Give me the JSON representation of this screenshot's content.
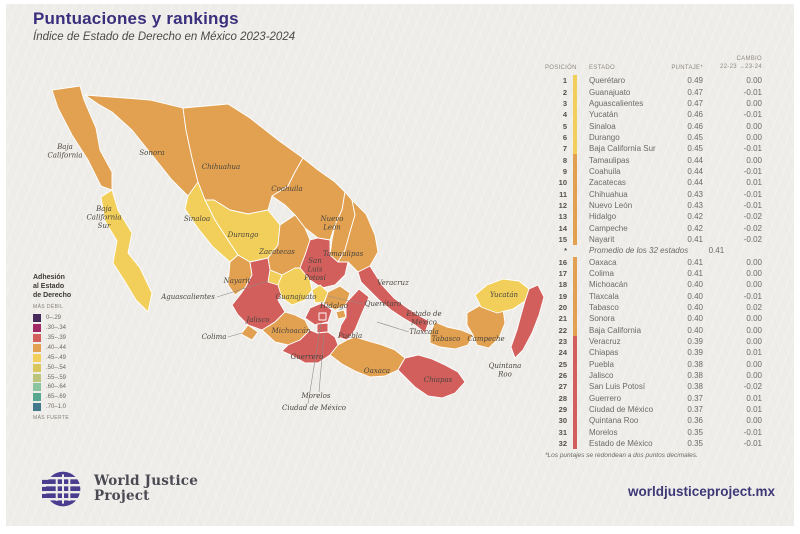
{
  "header": {
    "title": "Puntuaciones y rankings",
    "subtitle": "Índice de Estado de Derecho en México 2023-2024"
  },
  "colors": {
    "paper": "#efede9",
    "title_purple": "#3a2f7d",
    "bands": {
      "yellow": "#F2CF5A",
      "orange": "#E2A150",
      "red": "#D35F5C"
    }
  },
  "legend": {
    "title1": "Adhesión",
    "title2": "al Estado",
    "title3": "de Derecho",
    "weak": "MÁS DÉBIL",
    "strong": "MÁS FUERTE",
    "bins": [
      {
        "range": "0–.29",
        "color": "#472A5B"
      },
      {
        "range": ".30–.34",
        "color": "#A12A66"
      },
      {
        "range": ".35–.39",
        "color": "#D35F5C"
      },
      {
        "range": ".40–.44",
        "color": "#E2A150"
      },
      {
        "range": ".45–.49",
        "color": "#F2CF5A"
      },
      {
        "range": ".50–.54",
        "color": "#D9C75E"
      },
      {
        "range": ".55–.59",
        "color": "#BAC57B"
      },
      {
        "range": ".60–.64",
        "color": "#8CC49F"
      },
      {
        "range": ".65–.69",
        "color": "#56A690"
      },
      {
        "range": ".70–1.0",
        "color": "#44788C"
      }
    ]
  },
  "table": {
    "headers": {
      "position": "POSICIÓN",
      "estado": "ESTADO",
      "puntaje": "PUNTAJE*",
      "cambio1": "CAMBIO",
      "cambio2": "22-23 →23-24"
    },
    "rows": [
      {
        "pos": "1",
        "estado": "Querétaro",
        "puntaje": "0.49",
        "cambio": "0.00",
        "band": "yellow"
      },
      {
        "pos": "2",
        "estado": "Guanajuato",
        "puntaje": "0.47",
        "cambio": "-0.01",
        "band": "yellow"
      },
      {
        "pos": "3",
        "estado": "Aguascalientes",
        "puntaje": "0.47",
        "cambio": "0.00",
        "band": "yellow"
      },
      {
        "pos": "4",
        "estado": "Yucatán",
        "puntaje": "0.46",
        "cambio": "-0.01",
        "band": "yellow"
      },
      {
        "pos": "5",
        "estado": "Sinaloa",
        "puntaje": "0.46",
        "cambio": "0.00",
        "band": "yellow"
      },
      {
        "pos": "6",
        "estado": "Durango",
        "puntaje": "0.45",
        "cambio": "0.00",
        "band": "yellow"
      },
      {
        "pos": "7",
        "estado": "Baja California Sur",
        "puntaje": "0.45",
        "cambio": "-0.01",
        "band": "yellow"
      },
      {
        "pos": "8",
        "estado": "Tamaulipas",
        "puntaje": "0.44",
        "cambio": "0.00",
        "band": "orange"
      },
      {
        "pos": "9",
        "estado": "Coahuila",
        "puntaje": "0.44",
        "cambio": "-0.01",
        "band": "orange"
      },
      {
        "pos": "10",
        "estado": "Zacatecas",
        "puntaje": "0.44",
        "cambio": "0.01",
        "band": "orange"
      },
      {
        "pos": "11",
        "estado": "Chihuahua",
        "puntaje": "0.43",
        "cambio": "-0.01",
        "band": "orange"
      },
      {
        "pos": "12",
        "estado": "Nuevo León",
        "puntaje": "0.43",
        "cambio": "-0.01",
        "band": "orange"
      },
      {
        "pos": "13",
        "estado": "Hidalgo",
        "puntaje": "0.42",
        "cambio": "-0.02",
        "band": "orange"
      },
      {
        "pos": "14",
        "estado": "Campeche",
        "puntaje": "0.42",
        "cambio": "-0.02",
        "band": "orange"
      },
      {
        "pos": "15",
        "estado": "Nayarit",
        "puntaje": "0.41",
        "cambio": "-0.02",
        "band": "orange"
      },
      {
        "pos": "*",
        "estado": "Promedio de los 32 estados",
        "puntaje": "0.41",
        "cambio": "",
        "band": null,
        "average": true
      },
      {
        "pos": "16",
        "estado": "Oaxaca",
        "puntaje": "0.41",
        "cambio": "0.00",
        "band": "orange"
      },
      {
        "pos": "17",
        "estado": "Colima",
        "puntaje": "0.41",
        "cambio": "0.00",
        "band": "orange"
      },
      {
        "pos": "18",
        "estado": "Michoacán",
        "puntaje": "0.40",
        "cambio": "0.00",
        "band": "orange"
      },
      {
        "pos": "19",
        "estado": "Tlaxcala",
        "puntaje": "0.40",
        "cambio": "-0.01",
        "band": "orange"
      },
      {
        "pos": "20",
        "estado": "Tabasco",
        "puntaje": "0.40",
        "cambio": "0.02",
        "band": "orange"
      },
      {
        "pos": "21",
        "estado": "Sonora",
        "puntaje": "0.40",
        "cambio": "0.00",
        "band": "orange"
      },
      {
        "pos": "22",
        "estado": "Baja California",
        "puntaje": "0.40",
        "cambio": "0.00",
        "band": "orange"
      },
      {
        "pos": "23",
        "estado": "Veracruz",
        "puntaje": "0.39",
        "cambio": "0.00",
        "band": "red"
      },
      {
        "pos": "24",
        "estado": "Chiapas",
        "puntaje": "0.39",
        "cambio": "0.01",
        "band": "red"
      },
      {
        "pos": "25",
        "estado": "Puebla",
        "puntaje": "0.38",
        "cambio": "0.00",
        "band": "red"
      },
      {
        "pos": "26",
        "estado": "Jalisco",
        "puntaje": "0.38",
        "cambio": "0.00",
        "band": "red"
      },
      {
        "pos": "27",
        "estado": "San Luis Potosí",
        "puntaje": "0.38",
        "cambio": "-0.02",
        "band": "red"
      },
      {
        "pos": "28",
        "estado": "Guerrero",
        "puntaje": "0.37",
        "cambio": "0.01",
        "band": "red"
      },
      {
        "pos": "29",
        "estado": "Ciudad de México",
        "puntaje": "0.37",
        "cambio": "0.01",
        "band": "red"
      },
      {
        "pos": "30",
        "estado": "Quintana Roo",
        "puntaje": "0.36",
        "cambio": "0.00",
        "band": "red"
      },
      {
        "pos": "31",
        "estado": "Morelos",
        "puntaje": "0.35",
        "cambio": "-0.01",
        "band": "red"
      },
      {
        "pos": "32",
        "estado": "Estado de México",
        "puntaje": "0.35",
        "cambio": "-0.01",
        "band": "red"
      }
    ],
    "footnote": "*Los puntajes se redondean a dos puntos decimales."
  },
  "map": {
    "states": [
      {
        "id": "baja-california",
        "band": "orange"
      },
      {
        "id": "baja-california-sur",
        "band": "yellow"
      },
      {
        "id": "sonora",
        "band": "orange"
      },
      {
        "id": "chihuahua",
        "band": "orange"
      },
      {
        "id": "coahuila",
        "band": "orange"
      },
      {
        "id": "nuevo-leon",
        "band": "orange"
      },
      {
        "id": "tamaulipas",
        "band": "orange"
      },
      {
        "id": "sinaloa",
        "band": "yellow"
      },
      {
        "id": "durango",
        "band": "yellow"
      },
      {
        "id": "zacatecas",
        "band": "orange"
      },
      {
        "id": "san-luis-potosi",
        "band": "red"
      },
      {
        "id": "nayarit",
        "band": "orange"
      },
      {
        "id": "jalisco",
        "band": "red"
      },
      {
        "id": "aguascalientes",
        "band": "yellow"
      },
      {
        "id": "guanajuato",
        "band": "yellow"
      },
      {
        "id": "queretaro",
        "band": "yellow"
      },
      {
        "id": "hidalgo",
        "band": "orange"
      },
      {
        "id": "veracruz",
        "band": "red"
      },
      {
        "id": "michoacan",
        "band": "orange"
      },
      {
        "id": "colima",
        "band": "orange"
      },
      {
        "id": "estado-de-mexico",
        "band": "red"
      },
      {
        "id": "puebla",
        "band": "red"
      },
      {
        "id": "ciudad-de-mexico",
        "band": "red"
      },
      {
        "id": "tlaxcala",
        "band": "orange"
      },
      {
        "id": "morelos",
        "band": "red"
      },
      {
        "id": "guerrero",
        "band": "red"
      },
      {
        "id": "oaxaca",
        "band": "orange"
      },
      {
        "id": "tabasco",
        "band": "orange"
      },
      {
        "id": "chiapas",
        "band": "red"
      },
      {
        "id": "campeche",
        "band": "orange"
      },
      {
        "id": "yucatan",
        "band": "yellow"
      },
      {
        "id": "quintana-roo",
        "band": "red"
      }
    ],
    "labels": [
      {
        "id": "baja-california",
        "lines": [
          "Baja",
          "California"
        ]
      },
      {
        "id": "baja-california-sur",
        "lines": [
          "Baja",
          "California",
          "Sur"
        ]
      },
      {
        "id": "sonora",
        "lines": [
          "Sonora"
        ]
      },
      {
        "id": "chihuahua",
        "lines": [
          "Chihuahua"
        ]
      },
      {
        "id": "coahuila",
        "lines": [
          "Coahuila"
        ]
      },
      {
        "id": "sinaloa",
        "lines": [
          "Sinaloa"
        ]
      },
      {
        "id": "durango",
        "lines": [
          "Durango"
        ]
      },
      {
        "id": "nuevo-leon",
        "lines": [
          "Nuevo",
          "León"
        ]
      },
      {
        "id": "tamaulipas",
        "lines": [
          "Tamaulipas"
        ]
      },
      {
        "id": "zacatecas",
        "lines": [
          "Zacatecas"
        ]
      },
      {
        "id": "san-luis-potosi",
        "lines": [
          "San",
          "Luis",
          "Potosí"
        ]
      },
      {
        "id": "nayarit",
        "lines": [
          "Nayarit"
        ]
      },
      {
        "id": "aguascalientes",
        "lines": [
          "Aguascalientes"
        ]
      },
      {
        "id": "jalisco",
        "lines": [
          "Jalisco"
        ]
      },
      {
        "id": "guanajuato",
        "lines": [
          "Guanajuato"
        ]
      },
      {
        "id": "queretaro",
        "lines": [
          "Querétaro"
        ]
      },
      {
        "id": "hidalgo",
        "lines": [
          "Hidalgo"
        ]
      },
      {
        "id": "veracruz",
        "lines": [
          "Veracruz"
        ]
      },
      {
        "id": "estado-de-mexico",
        "lines": [
          "Estado de",
          "México"
        ]
      },
      {
        "id": "tlaxcala",
        "lines": [
          "Tlaxcala"
        ]
      },
      {
        "id": "michoacan",
        "lines": [
          "Michoacán"
        ]
      },
      {
        "id": "colima",
        "lines": [
          "Colima"
        ]
      },
      {
        "id": "puebla",
        "lines": [
          "Puebla"
        ]
      },
      {
        "id": "guerrero",
        "lines": [
          "Guerrero"
        ]
      },
      {
        "id": "oaxaca",
        "lines": [
          "Oaxaca"
        ]
      },
      {
        "id": "morelos",
        "lines": [
          "Morelos"
        ]
      },
      {
        "id": "ciudad-de-mexico",
        "lines": [
          "Ciudad de México"
        ]
      },
      {
        "id": "tabasco",
        "lines": [
          "Tabasco"
        ]
      },
      {
        "id": "campeche",
        "lines": [
          "Campeche"
        ]
      },
      {
        "id": "chiapas",
        "lines": [
          "Chiapas"
        ]
      },
      {
        "id": "yucatan",
        "lines": [
          "Yucatán"
        ]
      },
      {
        "id": "quintana-roo",
        "lines": [
          "Quintana",
          "Roo"
        ]
      }
    ]
  },
  "footer": {
    "logo_line1": "World Justice",
    "logo_line2": "Project",
    "url": "worldjusticeproject.mx"
  }
}
